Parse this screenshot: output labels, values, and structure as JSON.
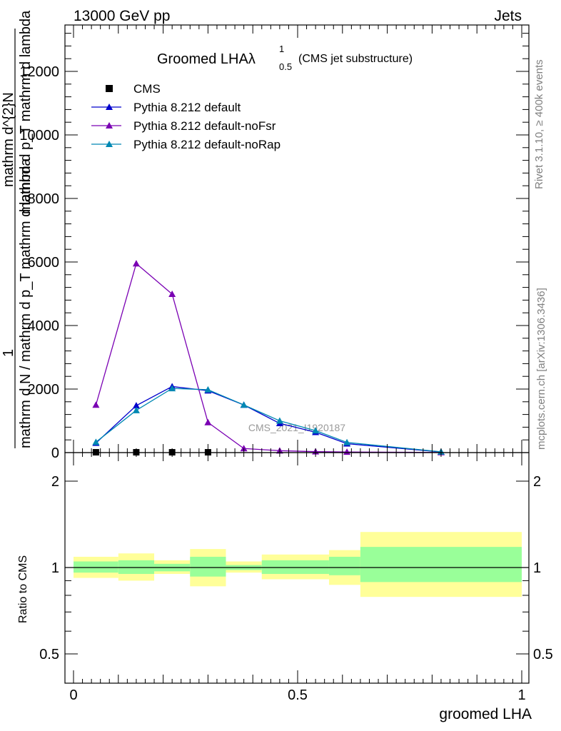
{
  "header": {
    "left": "13000 GeV pp",
    "right": "Jets"
  },
  "title": {
    "main": "Groomed LHA",
    "lambda_symbol": "λ",
    "lambda_sup": "1",
    "lambda_sub": "0.5",
    "suffix": "(CMS jet substructure)"
  },
  "side_labels": {
    "rivet": "Rivet 3.1.10, ≥ 400k events",
    "mcplots": "mcplots.cern.ch [arXiv:1306.3436]"
  },
  "watermark": "CMS_2021_I1920187",
  "y_axis_label": {
    "numerator": "1",
    "denominator": "mathrm d N / mathrm d p_T mathrm d lambda",
    "line1": "mathrm d^{2}N",
    "line2": "mathrm d p_T mathrm d lambda",
    "line3": "mathrm d N / mathrm d p_T mathrm d lambda",
    "frac_top": "1"
  },
  "ratio_label": "Ratio to CMS",
  "x_axis_label": "groomed LHA",
  "legend": [
    {
      "label": "CMS",
      "marker": "square",
      "color": "#000000"
    },
    {
      "label": "Pythia 8.212 default",
      "marker": "triangle",
      "color": "#0000cc"
    },
    {
      "label": "Pythia 8.212 default-noFsr",
      "marker": "triangle",
      "color": "#7a00b3"
    },
    {
      "label": "Pythia 8.212 default-noRap",
      "marker": "triangle",
      "color": "#0088b3"
    }
  ],
  "chart_data": [
    {
      "type": "line",
      "panel": "main",
      "title": "Groomed LHA λ^1_0.5 (CMS jet substructure)",
      "xlabel": "groomed LHA",
      "xlim": [
        -0.02,
        1.02
      ],
      "ylim": [
        0,
        13500
      ],
      "yticks": [
        0,
        2000,
        4000,
        6000,
        8000,
        10000,
        12000
      ],
      "ytick_labels": [
        "0",
        "2000",
        "4000",
        "6000",
        "8000",
        "10000",
        "12000"
      ],
      "series": [
        {
          "name": "CMS",
          "x": [
            0.05,
            0.14,
            0.22,
            0.3
          ],
          "y": [
            10,
            10,
            10,
            10
          ]
        },
        {
          "name": "Pythia 8.212 default",
          "x": [
            0.05,
            0.14,
            0.22,
            0.3,
            0.38,
            0.46,
            0.54,
            0.61,
            0.82
          ],
          "y": [
            300,
            1480,
            2080,
            1950,
            1500,
            920,
            640,
            280,
            20
          ]
        },
        {
          "name": "Pythia 8.212 default-noFsr",
          "x": [
            0.05,
            0.14,
            0.22,
            0.3,
            0.38,
            0.46,
            0.54,
            0.61,
            0.82
          ],
          "y": [
            1500,
            5950,
            4990,
            950,
            130,
            60,
            30,
            20,
            5
          ]
        },
        {
          "name": "Pythia 8.212 default-noRap",
          "x": [
            0.05,
            0.14,
            0.22,
            0.3,
            0.38,
            0.46,
            0.54,
            0.61,
            0.82
          ],
          "y": [
            330,
            1330,
            2020,
            1980,
            1500,
            1000,
            690,
            320,
            25
          ]
        }
      ]
    },
    {
      "type": "area",
      "panel": "ratio",
      "ylabel": "Ratio to CMS",
      "xlabel": "groomed LHA",
      "xlim": [
        -0.02,
        1.02
      ],
      "ylim": [
        0.4,
        2.3
      ],
      "ytick_labels": [
        "0.5",
        "1",
        "2"
      ],
      "xtick_labels": [
        "0",
        "0.5",
        "1"
      ],
      "bins": [
        {
          "x0": 0.0,
          "x1": 0.1,
          "yellow": [
            0.92,
            1.09
          ],
          "green": [
            0.96,
            1.05
          ]
        },
        {
          "x0": 0.1,
          "x1": 0.18,
          "yellow": [
            0.9,
            1.12
          ],
          "green": [
            0.95,
            1.06
          ]
        },
        {
          "x0": 0.18,
          "x1": 0.26,
          "yellow": [
            0.95,
            1.06
          ],
          "green": [
            0.97,
            1.03
          ]
        },
        {
          "x0": 0.26,
          "x1": 0.34,
          "yellow": [
            0.86,
            1.16
          ],
          "green": [
            0.93,
            1.09
          ]
        },
        {
          "x0": 0.34,
          "x1": 0.42,
          "yellow": [
            0.96,
            1.05
          ],
          "green": [
            0.98,
            1.02
          ]
        },
        {
          "x0": 0.42,
          "x1": 0.5,
          "yellow": [
            0.91,
            1.11
          ],
          "green": [
            0.95,
            1.06
          ]
        },
        {
          "x0": 0.5,
          "x1": 0.57,
          "yellow": [
            0.91,
            1.11
          ],
          "green": [
            0.95,
            1.06
          ]
        },
        {
          "x0": 0.57,
          "x1": 0.64,
          "yellow": [
            0.87,
            1.15
          ],
          "green": [
            0.94,
            1.09
          ]
        },
        {
          "x0": 0.64,
          "x1": 1.0,
          "yellow": [
            0.79,
            1.33
          ],
          "green": [
            0.89,
            1.18
          ]
        }
      ]
    }
  ]
}
